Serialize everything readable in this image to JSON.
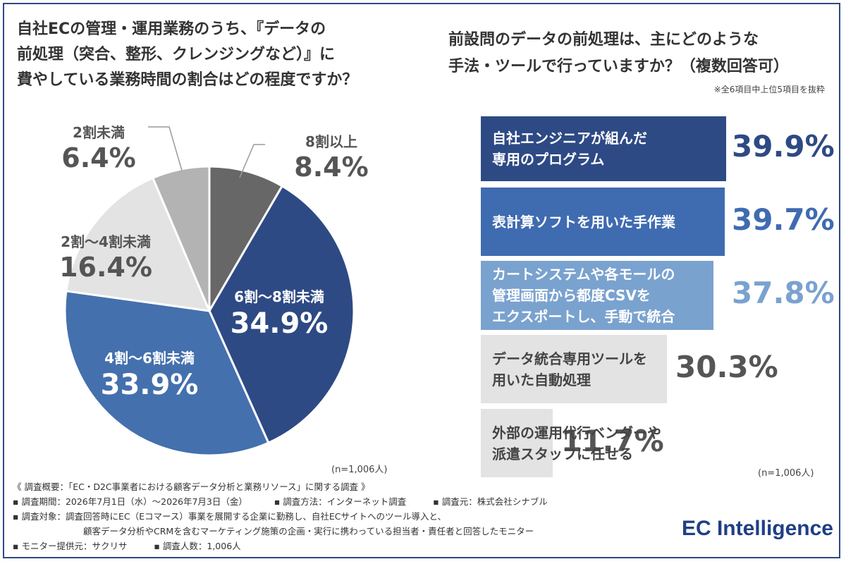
{
  "pie": {
    "title_lines": [
      "自社ECの管理・運用業務のうち、『データの",
      "前処理（突合、整形、クレンジングなど）』に",
      "費やしている業務時間の割合はどの程度ですか？"
    ],
    "n_label": "(n=1,006人)"
  },
  "bars": {
    "title_lines": [
      "前設問のデータの前処理は、主にどのような",
      "手法・ツールで行っていますか？（複数回答可）"
    ],
    "note": "※全6項目中上位5項目を抜粋",
    "n_label": "(n=1,006人)"
  },
  "chart_data": [
    {
      "type": "pie",
      "slices": [
        {
          "label": "8割以上",
          "value": 8.4,
          "display": "8.4%",
          "color": "#676767"
        },
        {
          "label": "6割～8割未満",
          "value": 34.9,
          "display": "34.9%",
          "color": "#2e4a85"
        },
        {
          "label": "4割～6割未満",
          "value": 33.9,
          "display": "33.9%",
          "color": "#4470ad"
        },
        {
          "label": "2割～4割未満",
          "value": 16.4,
          "display": "16.4%",
          "color": "#e3e3e3"
        },
        {
          "label": "2割未満",
          "value": 6.4,
          "display": "6.4%",
          "color": "#b3b3b3"
        }
      ]
    },
    {
      "type": "bar",
      "categories": [
        [
          "自社エンジニアが組んだ",
          "専用のプログラム"
        ],
        [
          "表計算ソフトを用いた手作業"
        ],
        [
          "カートシステムや各モールの",
          "管理画面から都度CSVを",
          "エクスポートし、手動で統合"
        ],
        [
          "データ統合専用ツールを",
          "用いた自動処理"
        ],
        [
          "外部の運用代行ベンダーや",
          "派遣スタッフに任せる"
        ]
      ],
      "values": [
        39.9,
        39.7,
        37.8,
        30.3,
        11.7
      ],
      "display": [
        "39.9%",
        "39.7%",
        "37.8%",
        "30.3%",
        "11.7%"
      ],
      "colors": [
        "#2e4a85",
        "#3f6bb0",
        "#7aa2cf",
        "#e3e3e3",
        "#e3e3e3"
      ],
      "text_colors": [
        "#ffffff",
        "#ffffff",
        "#ffffff",
        "#444444",
        "#444444"
      ],
      "value_colors": [
        "#2e4a85",
        "#3f6bb0",
        "#7aa2cf",
        "#555555",
        "#555555"
      ]
    }
  ],
  "footer": {
    "line1": "《 調査概要：「EC・D2C事業者における顧客データ分析と業務リソース」に関する調査 》",
    "line2a": "▪ 調査期間：2026年7月1日（水）～2026年7月3日（金）",
    "line2b": "▪ 調査方法：インターネット調査",
    "line2c": "▪ 調査元：株式会社シナブル",
    "line3": "▪ 調査対象：調査回答時にEC（Eコマース）事業を展開する企業に勤務し、自社ECサイトへのツール導入と、",
    "line4": "顧客データ分析やCRMを含むマーケティング施策の企画・実行に携わっている担当者・責任者と回答したモニター",
    "line5a": "▪ モニター提供元：サクリサ",
    "line5b": "▪ 調査人数：1,006人"
  },
  "logo": "EC Intelligence"
}
